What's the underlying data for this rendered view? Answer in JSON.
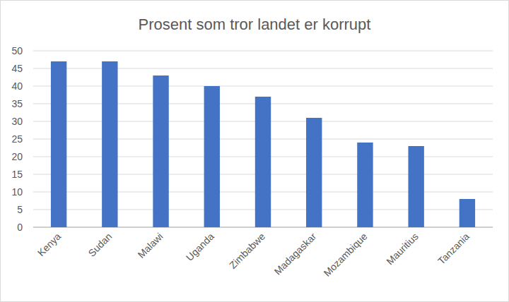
{
  "chart_data": {
    "type": "bar",
    "title": "Prosent som tror landet er korrupt",
    "categories": [
      "Kenya",
      "Sudan",
      "Malawi",
      "Uganda",
      "Zimbabwe",
      "Madagaskar",
      "Mozambique",
      "Mauritius",
      "Tanzania"
    ],
    "values": [
      47,
      47,
      43,
      40,
      37,
      31,
      24,
      23,
      8
    ],
    "color": "#4472c4",
    "ylim": [
      0,
      50
    ],
    "yticks": [
      0,
      5,
      10,
      15,
      20,
      25,
      30,
      35,
      40,
      45,
      50
    ],
    "grid": true
  }
}
